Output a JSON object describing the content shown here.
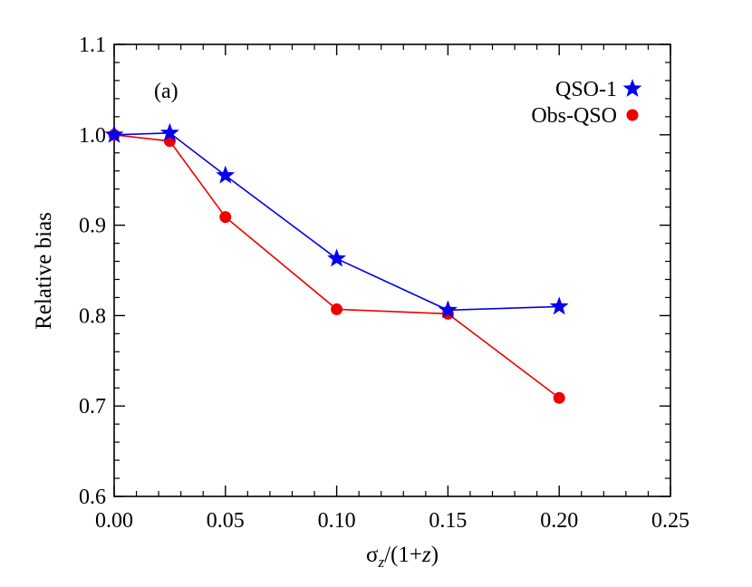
{
  "chart_data": {
    "type": "line",
    "panel_label": "(a)",
    "xlabel": {
      "main": "σ",
      "sub": "z",
      "rest": "/(1+",
      "z": "z",
      "close": ")"
    },
    "ylabel": "Relative bias",
    "xlim": [
      0.0,
      0.25
    ],
    "ylim": [
      0.6,
      1.1
    ],
    "xticks": [
      0.0,
      0.05,
      0.1,
      0.15,
      0.2,
      0.25
    ],
    "xtick_labels": [
      "0.00",
      "0.05",
      "0.10",
      "0.15",
      "0.20",
      "0.25"
    ],
    "yticks": [
      0.6,
      0.7,
      0.8,
      0.9,
      1.0,
      1.1
    ],
    "ytick_labels": [
      "0.6",
      "0.7",
      "0.8",
      "0.9",
      "1.0",
      "1.1"
    ],
    "legend_position": "top-right",
    "grid": false,
    "series": [
      {
        "name": "QSO-1",
        "color": "#0000ee",
        "marker": "star",
        "x": [
          0.0,
          0.025,
          0.05,
          0.1,
          0.15,
          0.2
        ],
        "y": [
          1.0,
          1.002,
          0.955,
          0.863,
          0.806,
          0.81
        ]
      },
      {
        "name": "Obs-QSO",
        "color": "#ee0000",
        "marker": "circle",
        "x": [
          0.0,
          0.025,
          0.05,
          0.1,
          0.15,
          0.2
        ],
        "y": [
          1.0,
          0.993,
          0.909,
          0.807,
          0.802,
          0.709
        ]
      }
    ]
  }
}
